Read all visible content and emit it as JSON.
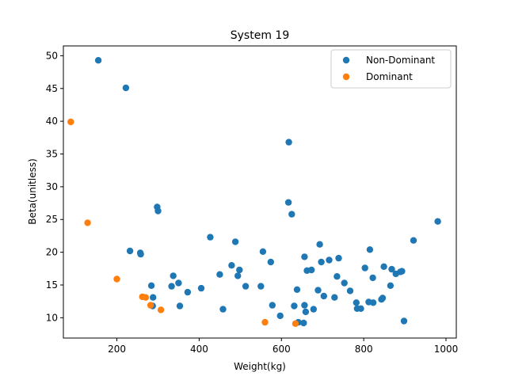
{
  "chart_data": {
    "type": "scatter",
    "title": "System 19",
    "xlabel": "Weight(kg)",
    "ylabel": "Beta(unitless)",
    "xlim": [
      70,
      1025
    ],
    "ylim": [
      6.9,
      51.5
    ],
    "xticks": [
      200,
      400,
      600,
      800,
      1000
    ],
    "yticks": [
      10,
      15,
      20,
      25,
      30,
      35,
      40,
      45,
      50
    ],
    "grid": false,
    "legend_position": "top-right",
    "series": [
      {
        "name": "Non-Dominant",
        "color": "#1f77b4",
        "points": [
          [
            155,
            49.3
          ],
          [
            222,
            45.1
          ],
          [
            232,
            20.2
          ],
          [
            257,
            19.9
          ],
          [
            258,
            19.7
          ],
          [
            284,
            14.9
          ],
          [
            288,
            13.1
          ],
          [
            287,
            11.8
          ],
          [
            298,
            26.9
          ],
          [
            300,
            26.3
          ],
          [
            333,
            14.8
          ],
          [
            337,
            16.4
          ],
          [
            350,
            15.3
          ],
          [
            353,
            11.8
          ],
          [
            372,
            13.9
          ],
          [
            405,
            14.5
          ],
          [
            427,
            22.3
          ],
          [
            450,
            16.6
          ],
          [
            458,
            11.3
          ],
          [
            479,
            18.0
          ],
          [
            488,
            21.6
          ],
          [
            494,
            16.4
          ],
          [
            498,
            17.3
          ],
          [
            513,
            14.8
          ],
          [
            550,
            14.8
          ],
          [
            555,
            20.1
          ],
          [
            574,
            18.5
          ],
          [
            578,
            11.9
          ],
          [
            597,
            10.3
          ],
          [
            617,
            27.6
          ],
          [
            618,
            36.8
          ],
          [
            625,
            25.8
          ],
          [
            631,
            11.8
          ],
          [
            638,
            14.3
          ],
          [
            641,
            9.3
          ],
          [
            654,
            9.2
          ],
          [
            656,
            11.9
          ],
          [
            656,
            19.3
          ],
          [
            659,
            10.9
          ],
          [
            662,
            17.2
          ],
          [
            673,
            17.3
          ],
          [
            678,
            11.3
          ],
          [
            689,
            14.2
          ],
          [
            693,
            21.2
          ],
          [
            697,
            18.5
          ],
          [
            703,
            13.3
          ],
          [
            716,
            18.8
          ],
          [
            729,
            13.1
          ],
          [
            735,
            16.3
          ],
          [
            739,
            19.1
          ],
          [
            753,
            15.3
          ],
          [
            767,
            14.1
          ],
          [
            782,
            12.3
          ],
          [
            784,
            11.4
          ],
          [
            793,
            11.4
          ],
          [
            803,
            17.6
          ],
          [
            812,
            12.4
          ],
          [
            815,
            20.4
          ],
          [
            822,
            16.1
          ],
          [
            823,
            12.3
          ],
          [
            843,
            12.8
          ],
          [
            846,
            13.0
          ],
          [
            849,
            17.8
          ],
          [
            865,
            14.9
          ],
          [
            868,
            17.4
          ],
          [
            878,
            16.7
          ],
          [
            889,
            17.0
          ],
          [
            893,
            17.1
          ],
          [
            898,
            9.5
          ],
          [
            921,
            21.8
          ],
          [
            980,
            24.7
          ]
        ]
      },
      {
        "name": "Dominant",
        "color": "#ff7f0e",
        "points": [
          [
            88,
            39.9
          ],
          [
            129,
            24.5
          ],
          [
            200,
            15.9
          ],
          [
            262,
            13.2
          ],
          [
            270,
            13.1
          ],
          [
            282,
            11.9
          ],
          [
            307,
            11.2
          ],
          [
            560,
            9.3
          ],
          [
            634,
            9.1
          ]
        ]
      }
    ]
  }
}
